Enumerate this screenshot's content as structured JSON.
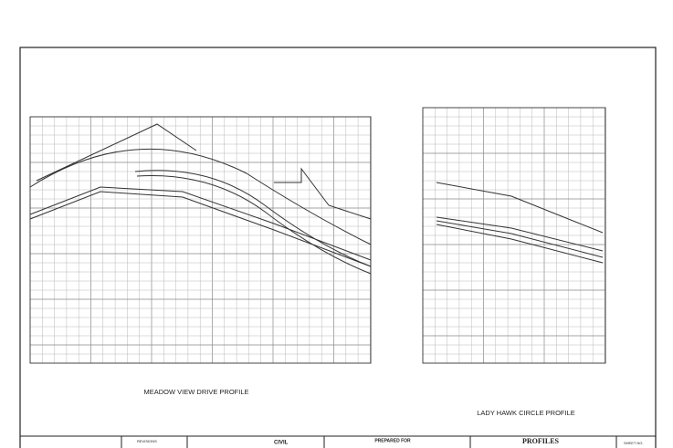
{
  "left_profile": {
    "title": "MEADOW VIEW DRIVE PROFILE"
  },
  "right_profile": {
    "title": "LADY HAWK CIRCLE PROFILE"
  },
  "title_block": {
    "revisions": "REVISIONS",
    "civil": "CIVIL",
    "prepared_for": "PREPARED FOR",
    "sheet_title": "PROFILES",
    "sheet_no": "SHEET NO."
  }
}
